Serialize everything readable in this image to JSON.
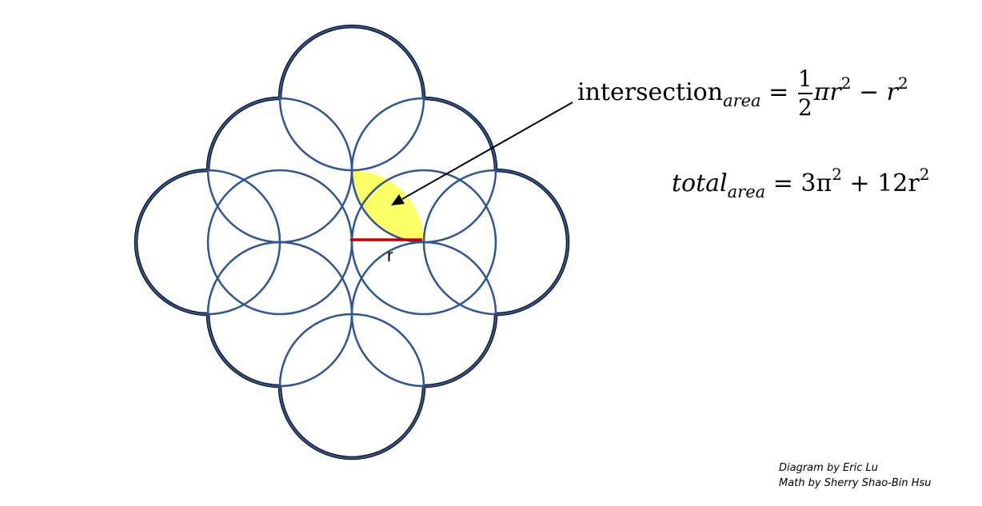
{
  "diagram": {
    "radius_label": "r",
    "colors": {
      "circle_stroke": "#2f5597",
      "outline_stroke": "#000000",
      "highlight_fill": "#ffff66",
      "radius_line": "#c00000",
      "arrow": "#000000"
    }
  },
  "equations": {
    "intersection": {
      "lhs_base": "intersection",
      "lhs_sub": "area",
      "equals": "=",
      "frac_num": "1",
      "frac_den": "2",
      "term1": "πr",
      "term1_exp": "2",
      "minus": "−",
      "term2": "r",
      "term2_exp": "2"
    },
    "total": {
      "lhs_base": "total",
      "lhs_sub": "area",
      "equals": "=",
      "term1": "3π",
      "term1_exp": "2",
      "plus": "+",
      "term2": "12r",
      "term2_exp": "2"
    }
  },
  "credits": {
    "diagram": "Diagram by Eric Lu",
    "math": "Math by Sherry Shao-Bin Hsu"
  }
}
